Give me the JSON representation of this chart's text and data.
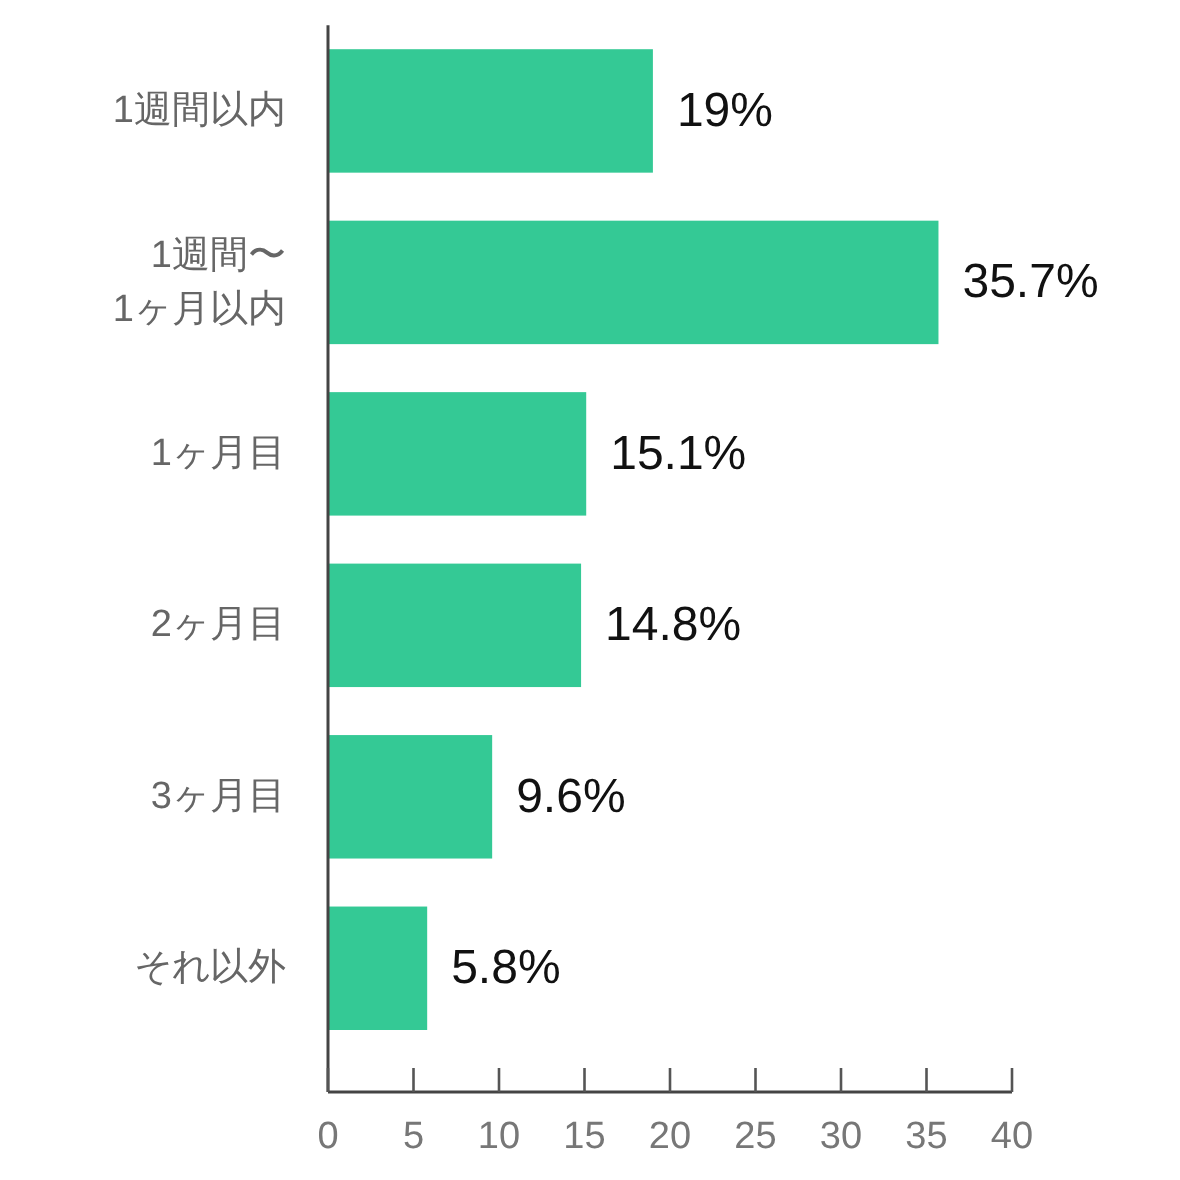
{
  "chart_data": {
    "type": "bar",
    "orientation": "horizontal",
    "categories": [
      "1週間以内",
      "1週間〜\n1ヶ月以内",
      "1ヶ月目",
      "2ヶ月目",
      "3ヶ月目",
      "それ以外"
    ],
    "values": [
      19,
      35.7,
      15.1,
      14.8,
      9.6,
      5.8
    ],
    "value_labels": [
      "19%",
      "35.7%",
      "15.1%",
      "14.8%",
      "9.6%",
      "5.8%"
    ],
    "color": "#34c995",
    "xlim": [
      0,
      40
    ],
    "xticks": [
      0,
      5,
      10,
      15,
      20,
      25,
      30,
      35,
      40
    ]
  }
}
